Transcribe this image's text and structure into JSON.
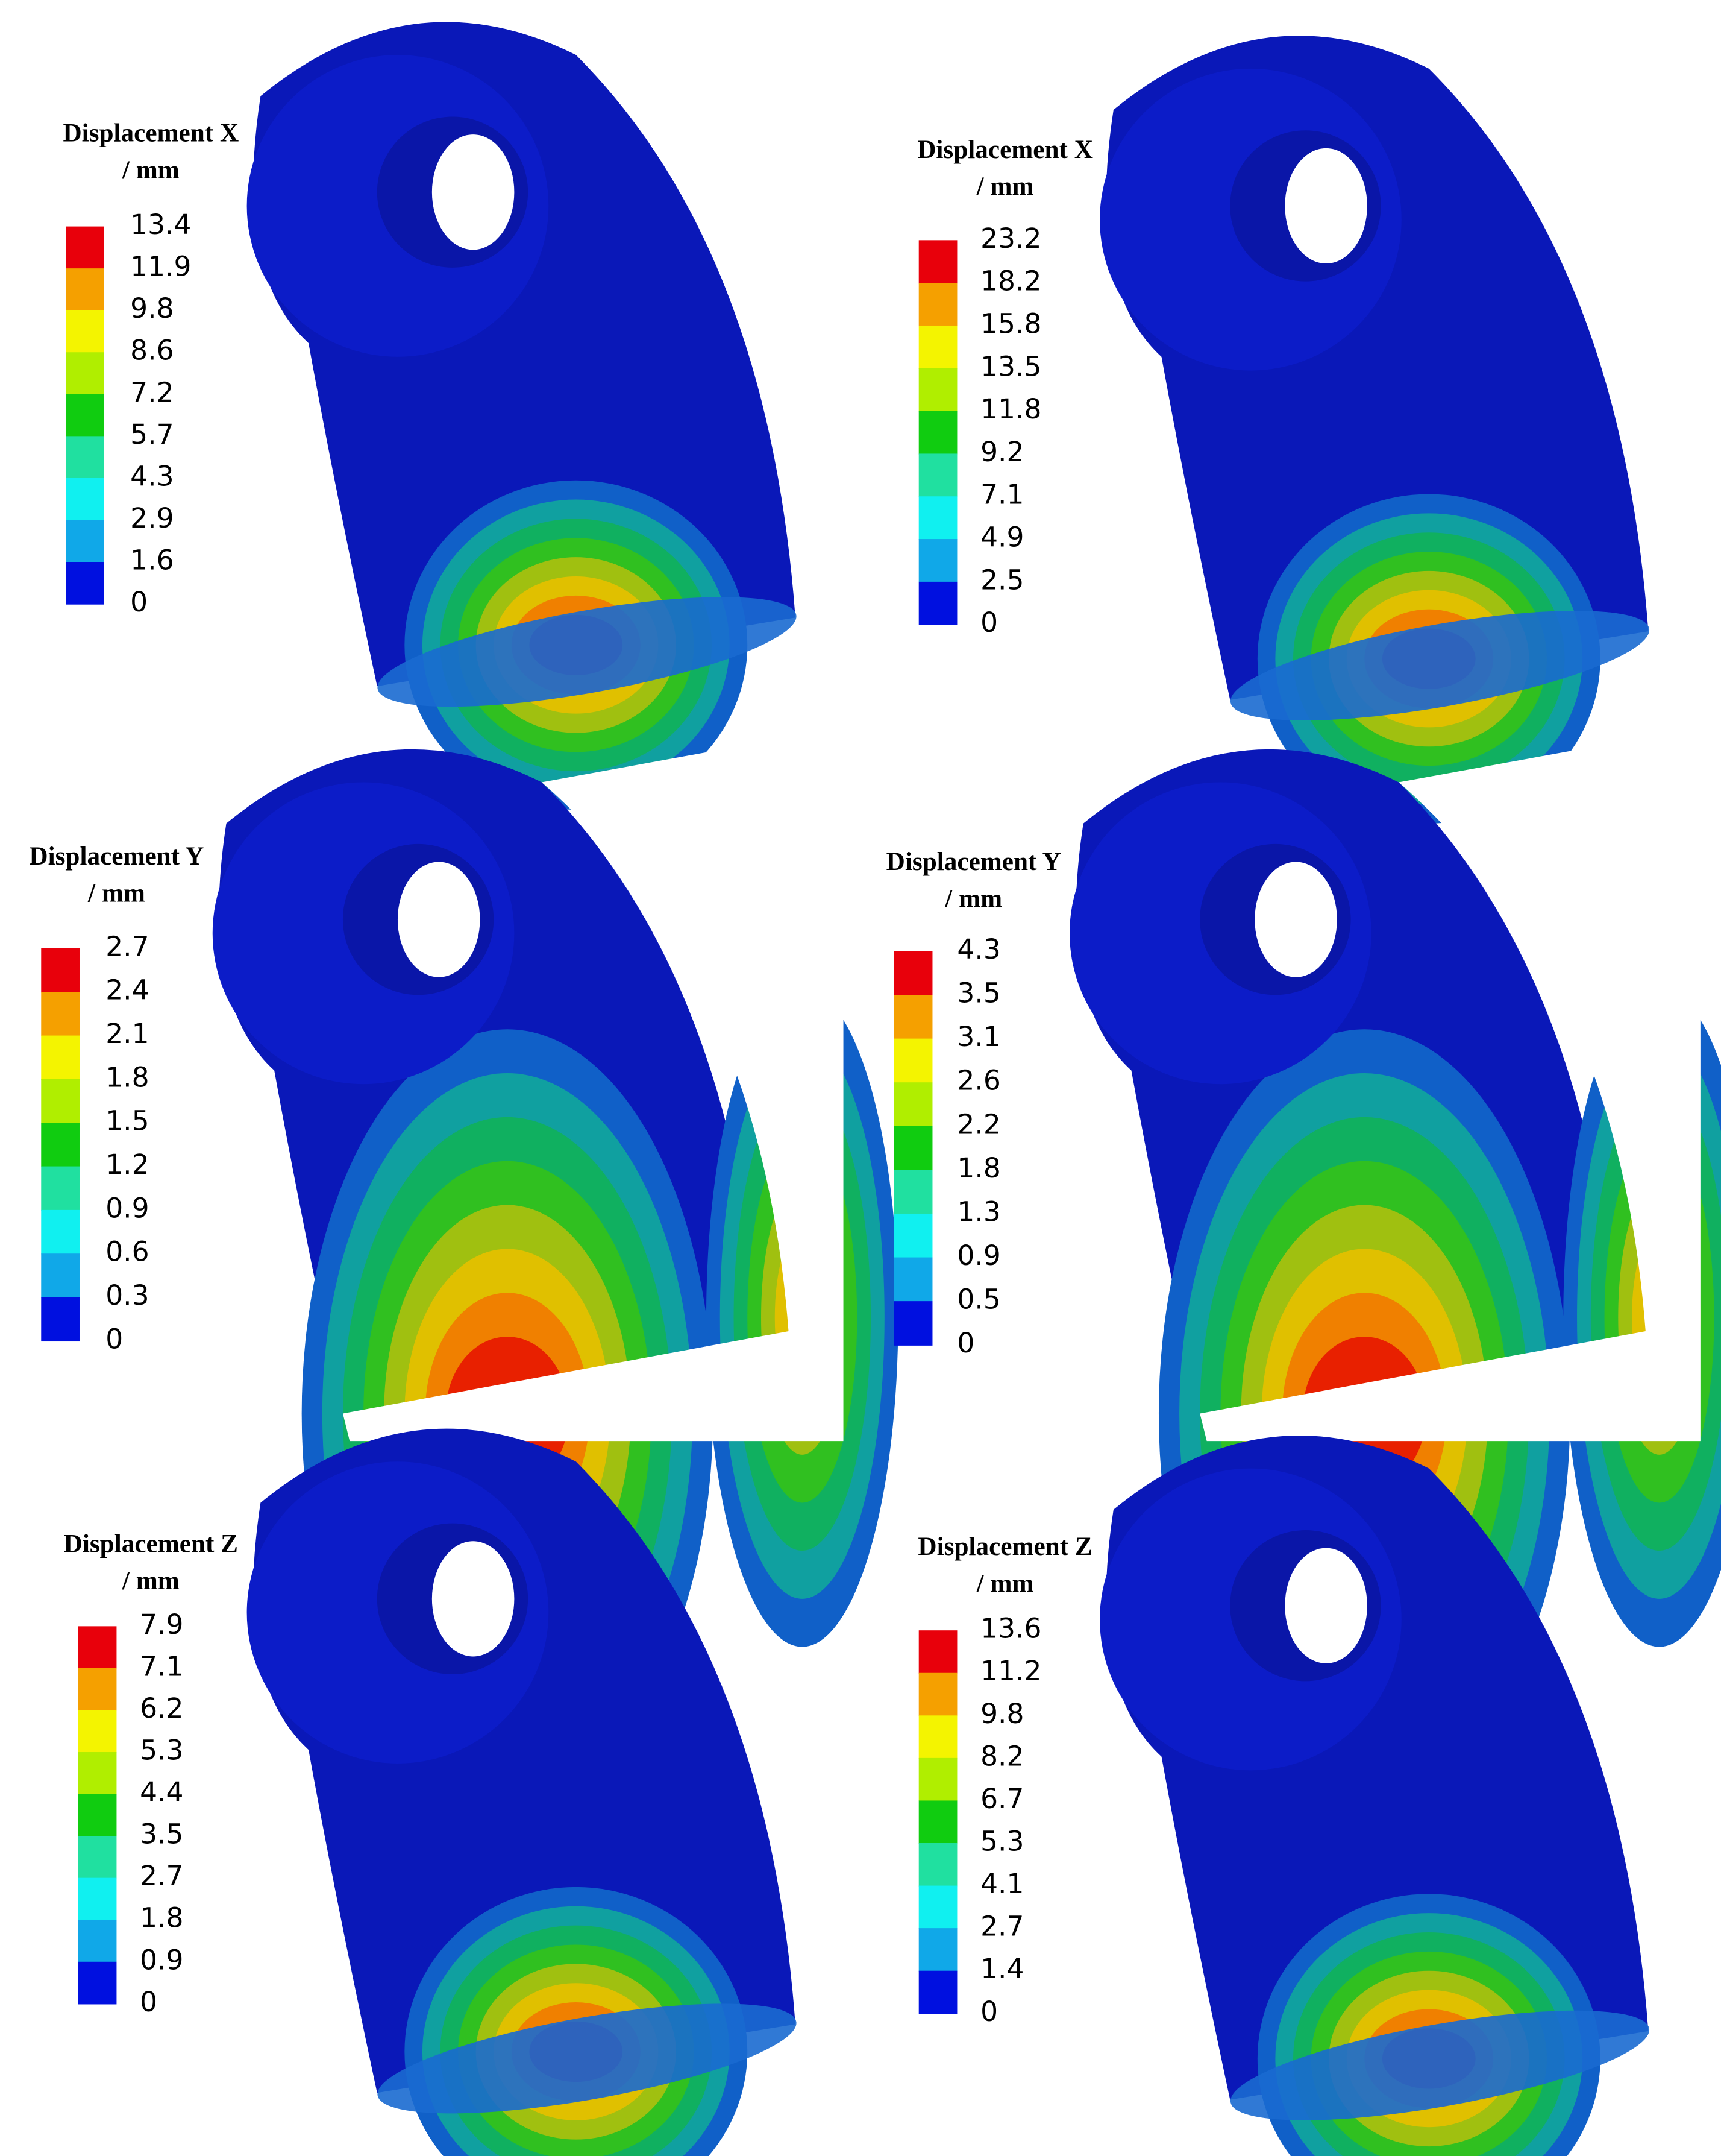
{
  "panels": [
    {
      "title": "Displacement X",
      "unit": "/ mm",
      "levels": [
        13.4,
        11.9,
        9.8,
        8.6,
        7.2,
        5.7,
        4.3,
        2.9,
        1.6,
        0
      ]
    },
    {
      "title": "Displacement X",
      "unit": "/ mm",
      "levels": [
        23.2,
        18.2,
        15.8,
        13.5,
        11.8,
        9.2,
        7.1,
        4.9,
        2.5,
        0
      ]
    },
    {
      "title": "Displacement Y",
      "unit": "/ mm",
      "levels": [
        2.7,
        2.4,
        2.1,
        1.8,
        1.5,
        1.2,
        0.9,
        0.6,
        0.3,
        0
      ]
    },
    {
      "title": "Displacement Y",
      "unit": "/ mm",
      "levels": [
        4.3,
        3.5,
        3.1,
        2.6,
        2.2,
        1.8,
        1.3,
        0.9,
        0.5,
        0
      ]
    },
    {
      "title": "Displacement Z",
      "unit": "/ mm",
      "levels": [
        7.9,
        7.1,
        6.2,
        5.3,
        4.4,
        3.5,
        2.7,
        1.8,
        0.9,
        0
      ]
    },
    {
      "title": "Displacement Z",
      "unit": "/ mm",
      "levels": [
        13.6,
        11.2,
        9.8,
        8.2,
        6.7,
        5.3,
        4.1,
        2.7,
        1.4,
        0
      ]
    }
  ]
}
